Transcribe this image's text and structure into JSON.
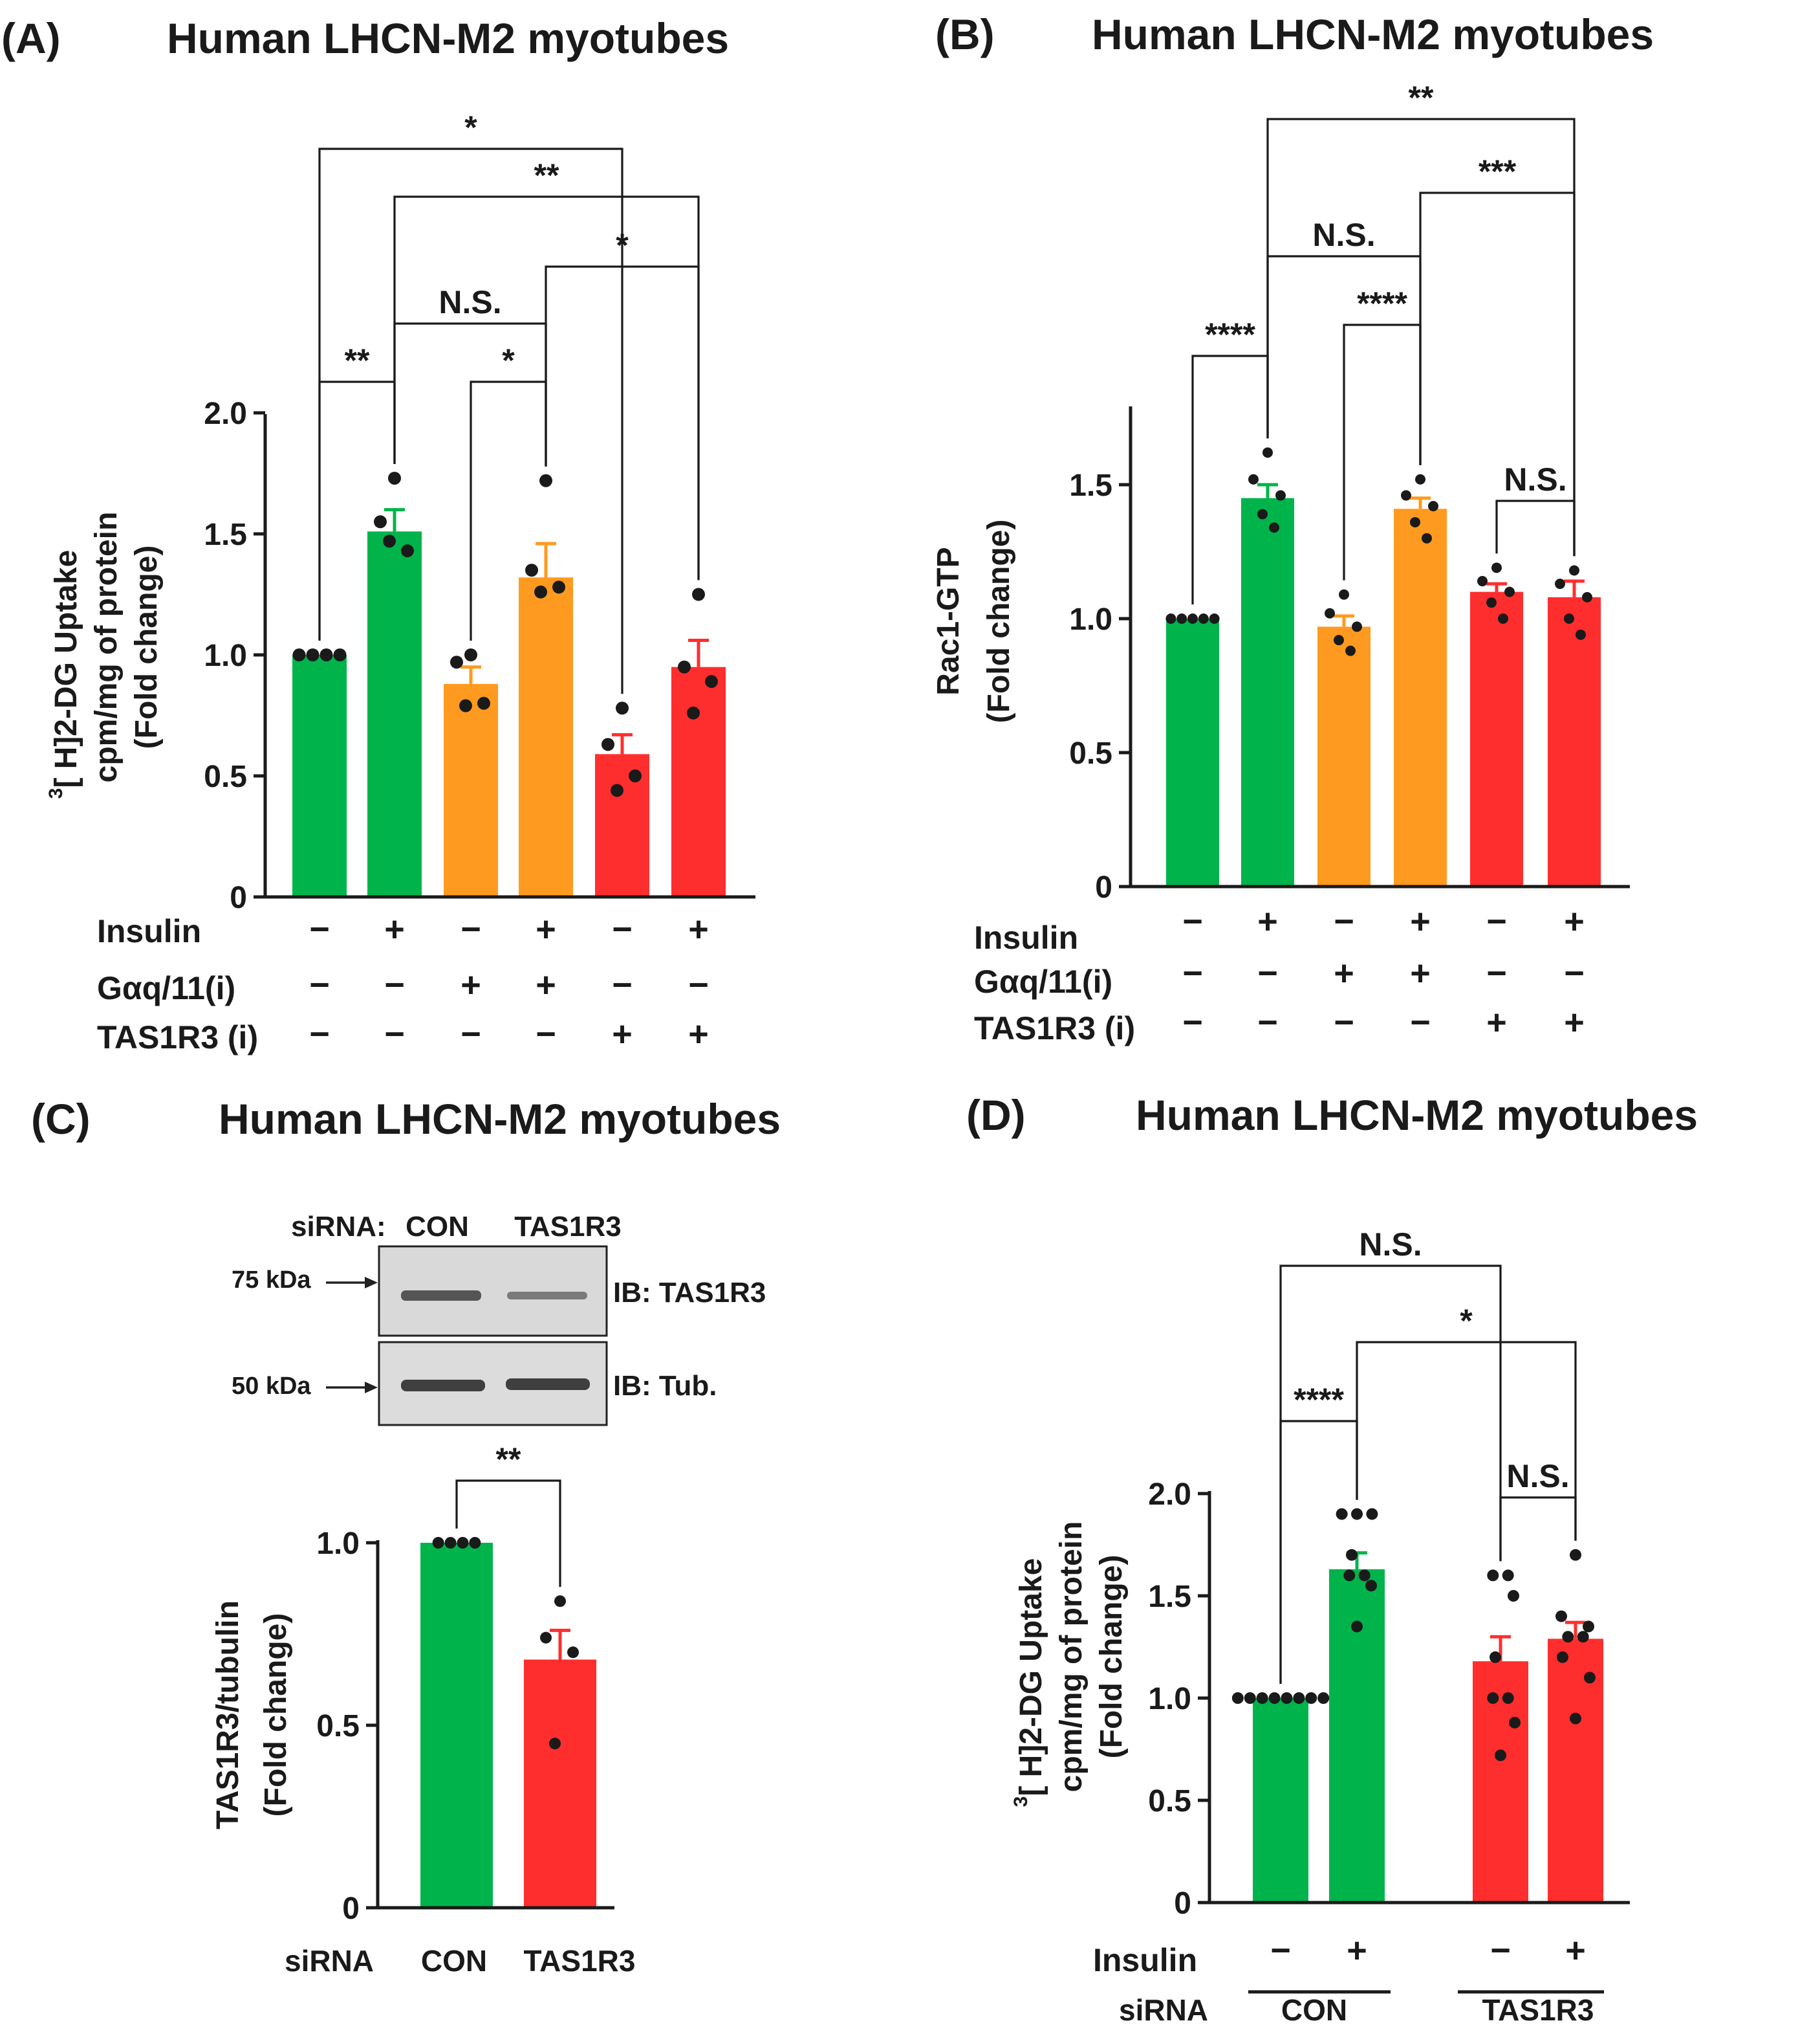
{
  "panels": [
    {
      "id": "A",
      "label": "(A)",
      "title": "Human LHCN-M2 myotubes"
    },
    {
      "id": "B",
      "label": "(B)",
      "title": "Human LHCN-M2 myotubes"
    },
    {
      "id": "C",
      "label": "(C)",
      "title": "Human LHCN-M2 myotubes"
    },
    {
      "id": "D",
      "label": "(D)",
      "title": "Human LHCN-M2 myotubes"
    }
  ],
  "colors": {
    "green": "#00b44b",
    "orange": "#ff9a20",
    "red": "#ff2e2e",
    "ink": "#1a1a1a"
  },
  "blot": {
    "header": "siRNA:",
    "lanes": [
      "CON",
      "TAS1R3"
    ],
    "rows": [
      {
        "marker": "75 kDa",
        "label": "IB: TAS1R3"
      },
      {
        "marker": "50 kDa",
        "label": "IB: Tub."
      }
    ]
  },
  "chart_data": [
    {
      "panel": "A",
      "type": "bar",
      "title": "Human LHCN-M2 myotubes",
      "ylabel": [
        "[3H]2-DG Uptake",
        "cpm/mg of protein",
        "(Fold change)"
      ],
      "ylim": [
        0,
        2.0
      ],
      "yticks": [
        0,
        0.5,
        1.0,
        1.5,
        2.0
      ],
      "ytick_labels": [
        "0",
        "0.5",
        "1.0",
        "1.5",
        "2.0"
      ],
      "categories": [
        "1",
        "2",
        "3",
        "4",
        "5",
        "6"
      ],
      "colors": [
        "green",
        "green",
        "orange",
        "orange",
        "red",
        "red"
      ],
      "values": [
        1.0,
        1.51,
        0.88,
        1.32,
        0.59,
        0.95
      ],
      "errors": [
        0,
        0.09,
        0.07,
        0.14,
        0.08,
        0.11
      ],
      "points": [
        [
          1.0,
          1.0,
          1.0,
          1.0
        ],
        [
          1.73,
          1.55,
          1.43,
          1.47
        ],
        [
          1.0,
          0.97,
          0.8,
          0.79
        ],
        [
          1.72,
          1.35,
          1.28,
          1.26
        ],
        [
          0.78,
          0.63,
          0.5,
          0.44
        ],
        [
          1.25,
          0.95,
          0.89,
          0.76
        ]
      ],
      "conditions": [
        {
          "name": "Insulin",
          "signs": [
            "−",
            "+",
            "−",
            "+",
            "−",
            "+"
          ]
        },
        {
          "name": "Gαq/11(i)",
          "signs": [
            "−",
            "−",
            "+",
            "+",
            "−",
            "−"
          ]
        },
        {
          "name": "TAS1R3 (i)",
          "signs": [
            "−",
            "−",
            "−",
            "−",
            "+",
            "+"
          ]
        }
      ],
      "significance": [
        {
          "from": 1,
          "to": 2,
          "label": "**"
        },
        {
          "from": 3,
          "to": 4,
          "label": "*"
        },
        {
          "from": 2,
          "to": 4,
          "label": "N.S."
        },
        {
          "from": 4,
          "to": 6,
          "label": "*"
        },
        {
          "from": 2,
          "to": 6,
          "label": "**"
        },
        {
          "from": 1,
          "to": 5,
          "label": "*"
        }
      ]
    },
    {
      "panel": "B",
      "type": "bar",
      "title": "Human LHCN-M2 myotubes",
      "ylabel": [
        "Rac1-GTP",
        "(Fold change)"
      ],
      "ylim": [
        0,
        1.8
      ],
      "yticks": [
        0,
        0.5,
        1.0,
        1.5
      ],
      "ytick_labels": [
        "0",
        "0.5",
        "1.0",
        "1.5"
      ],
      "categories": [
        "1",
        "2",
        "3",
        "4",
        "5",
        "6"
      ],
      "colors": [
        "green",
        "green",
        "orange",
        "orange",
        "red",
        "red"
      ],
      "values": [
        1.0,
        1.45,
        0.97,
        1.41,
        1.1,
        1.08
      ],
      "errors": [
        0,
        0.05,
        0.04,
        0.04,
        0.03,
        0.06
      ],
      "points": [
        [
          1.0,
          1.0,
          1.0,
          1.0,
          1.0
        ],
        [
          1.62,
          1.52,
          1.46,
          1.39,
          1.34
        ],
        [
          1.09,
          1.02,
          0.97,
          0.92,
          0.88
        ],
        [
          1.52,
          1.46,
          1.42,
          1.36,
          1.3
        ],
        [
          1.19,
          1.14,
          1.1,
          1.06,
          1.0
        ],
        [
          1.18,
          1.13,
          1.08,
          1.0,
          0.94
        ]
      ],
      "conditions": [
        {
          "name": "Insulin",
          "signs": [
            "−",
            "+",
            "−",
            "+",
            "−",
            "+"
          ]
        },
        {
          "name": "Gαq/11(i)",
          "signs": [
            "−",
            "−",
            "+",
            "+",
            "−",
            "−"
          ]
        },
        {
          "name": "TAS1R3 (i)",
          "signs": [
            "−",
            "−",
            "−",
            "−",
            "+",
            "+"
          ]
        }
      ],
      "significance": [
        {
          "from": 1,
          "to": 2,
          "label": "****"
        },
        {
          "from": 3,
          "to": 4,
          "label": "****"
        },
        {
          "from": 5,
          "to": 6,
          "label": "N.S."
        },
        {
          "from": 2,
          "to": 4,
          "label": "N.S."
        },
        {
          "from": 4,
          "to": 6,
          "label": "***"
        },
        {
          "from": 2,
          "to": 6,
          "label": "**"
        }
      ]
    },
    {
      "panel": "C",
      "type": "bar",
      "title": "Human LHCN-M2 myotubes",
      "ylabel": [
        "TAS1R3/tubulin",
        "(Fold change)"
      ],
      "ylim": [
        0,
        1.0
      ],
      "yticks": [
        0,
        0.5,
        1.0
      ],
      "ytick_labels": [
        "0",
        "0.5",
        "1.0"
      ],
      "categories": [
        "CON",
        "TAS1R3"
      ],
      "xlabel": "siRNA",
      "colors": [
        "green",
        "red"
      ],
      "values": [
        1.0,
        0.68
      ],
      "errors": [
        0,
        0.08
      ],
      "points": [
        [
          1.0,
          1.0,
          1.0,
          1.0
        ],
        [
          0.84,
          0.74,
          0.7,
          0.45
        ]
      ],
      "significance": [
        {
          "from": 1,
          "to": 2,
          "label": "**"
        }
      ]
    },
    {
      "panel": "D",
      "type": "bar",
      "title": "Human LHCN-M2 myotubes",
      "ylabel": [
        "[3H]2-DG Uptake",
        "cpm/mg of protein",
        "(Fold change)"
      ],
      "ylim": [
        0,
        2.0
      ],
      "yticks": [
        0,
        0.5,
        1.0,
        1.5,
        2.0
      ],
      "ytick_labels": [
        "0",
        "0.5",
        "1.0",
        "1.5",
        "2.0"
      ],
      "categories": [
        "1",
        "2",
        "3",
        "4"
      ],
      "colors": [
        "green",
        "green",
        "red",
        "red"
      ],
      "values": [
        1.0,
        1.63,
        1.18,
        1.29
      ],
      "errors": [
        0,
        0.08,
        0.12,
        0.08
      ],
      "points": [
        [
          1.0,
          1.0,
          1.0,
          1.0,
          1.0,
          1.0,
          1.0,
          1.0
        ],
        [
          1.9,
          1.9,
          1.9,
          1.7,
          1.6,
          1.6,
          1.55,
          1.35
        ],
        [
          1.6,
          1.6,
          1.5,
          1.2,
          1.0,
          1.0,
          0.88,
          0.72
        ],
        [
          1.7,
          1.4,
          1.35,
          1.3,
          1.3,
          1.2,
          1.1,
          0.9
        ]
      ],
      "conditions": [
        {
          "name": "Insulin",
          "signs": [
            "−",
            "+",
            "−",
            "+"
          ]
        }
      ],
      "groups": {
        "name": "siRNA",
        "labels": [
          "CON",
          "TAS1R3"
        ]
      },
      "significance": [
        {
          "from": 1,
          "to": 2,
          "label": "****"
        },
        {
          "from": 3,
          "to": 4,
          "label": "N.S."
        },
        {
          "from": 2,
          "to": 4,
          "label": "*"
        },
        {
          "from": 1,
          "to": 3,
          "label": "N.S."
        }
      ]
    }
  ]
}
